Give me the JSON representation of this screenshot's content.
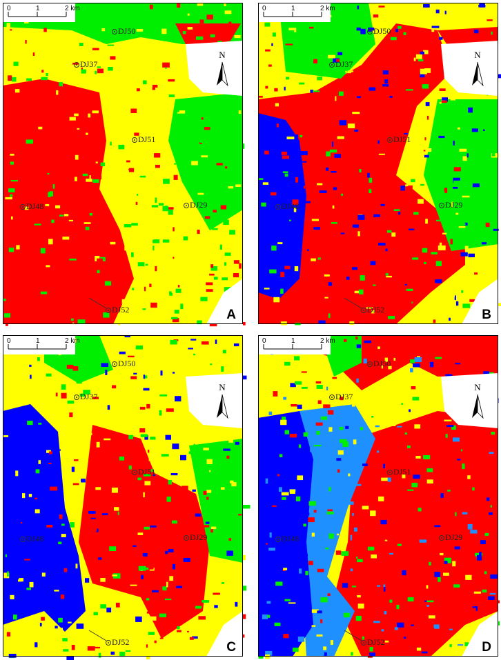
{
  "panels": [
    {
      "label": "A"
    },
    {
      "label": "B"
    },
    {
      "label": "C"
    },
    {
      "label": "D"
    }
  ],
  "scale_bar": {
    "ticks": [
      "0",
      "1",
      "2 km"
    ]
  },
  "north_label": "N",
  "wells": [
    "DJ50",
    "DJ37",
    "DJ51",
    "DJ48",
    "DJ29",
    "DJ52"
  ]
}
